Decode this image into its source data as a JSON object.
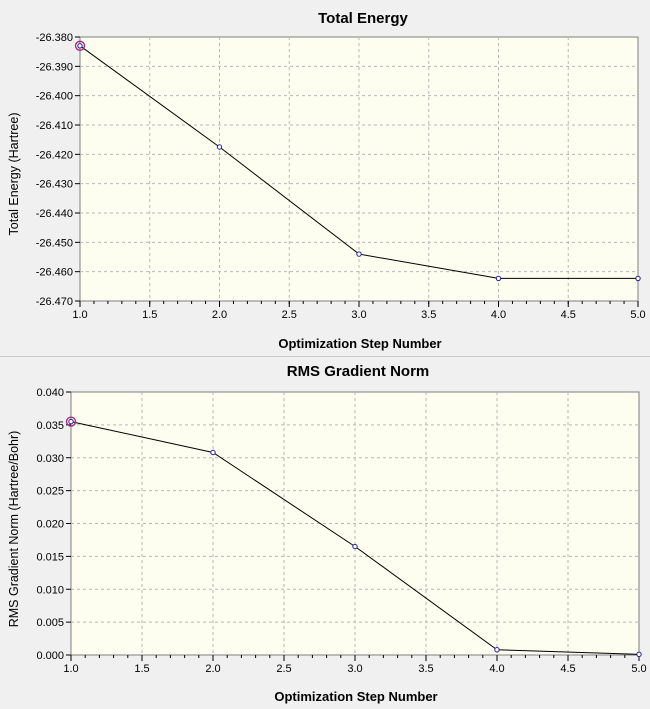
{
  "chart_data": [
    {
      "type": "line",
      "title": "Total Energy",
      "xlabel": "Optimization Step Number",
      "ylabel": "Total Energy (Hartree)",
      "xlim": [
        1.0,
        5.0
      ],
      "ylim": [
        -26.47,
        -26.38
      ],
      "x_ticks": [
        "1.0",
        "1.5",
        "2.0",
        "2.5",
        "3.0",
        "3.5",
        "4.0",
        "4.5",
        "5.0"
      ],
      "y_ticks": [
        "-26.380",
        "-26.390",
        "-26.400",
        "-26.410",
        "-26.420",
        "-26.430",
        "-26.440",
        "-26.450",
        "-26.460",
        "-26.470"
      ],
      "grid": true,
      "highlight_index": 0,
      "x": [
        1,
        2,
        3,
        4,
        5
      ],
      "values": [
        -26.383,
        -26.4175,
        -26.454,
        -26.4623,
        -26.4623
      ]
    },
    {
      "type": "line",
      "title": "RMS Gradient Norm",
      "xlabel": "Optimization Step Number",
      "ylabel": "RMS Gradient Norm (Hartree/Bohr)",
      "xlim": [
        1.0,
        5.0
      ],
      "ylim": [
        0.0,
        0.04
      ],
      "x_ticks": [
        "1.0",
        "1.5",
        "2.0",
        "2.5",
        "3.0",
        "3.5",
        "4.0",
        "4.5",
        "5.0"
      ],
      "y_ticks": [
        "0.040",
        "0.035",
        "0.030",
        "0.025",
        "0.020",
        "0.015",
        "0.010",
        "0.005",
        "0.000"
      ],
      "grid": true,
      "highlight_index": 0,
      "x": [
        1,
        2,
        3,
        4,
        5
      ],
      "values": [
        0.0355,
        0.0308,
        0.0165,
        0.0008,
        0.0001
      ]
    }
  ],
  "colors": {
    "plot_bg": "#fdfdf0",
    "grid": "#b8b8b8",
    "line": "#000000",
    "marker": "#2020a0",
    "highlight": "#b0207a"
  }
}
